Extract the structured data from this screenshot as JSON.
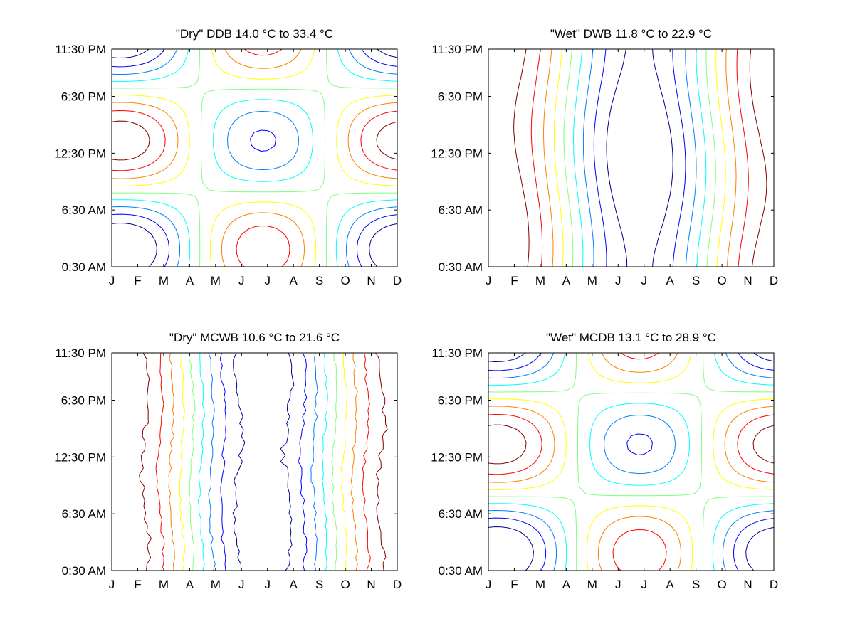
{
  "chart_data": [
    {
      "type": "contour",
      "title": "\"Dry\" DDB  14.0 °C to  33.4 °C",
      "x_ticks": [
        "J",
        "F",
        "M",
        "A",
        "M",
        "J",
        "J",
        "A",
        "S",
        "O",
        "N",
        "D"
      ],
      "y_ticks": [
        "0:30 AM",
        "6:30 AM",
        "12:30 PM",
        "6:30 PM",
        "11:30 PM"
      ],
      "value_range": [
        14.0,
        33.4
      ],
      "pattern": "saddle",
      "colormap": [
        "#00008f",
        "#0000ff",
        "#0080ff",
        "#00ffff",
        "#80ff80",
        "#ffff00",
        "#ff8000",
        "#ff0000",
        "#800000"
      ]
    },
    {
      "type": "contour",
      "title": "\"Wet\" DWB  11.8 °C to  22.9 °C",
      "x_ticks": [
        "J",
        "F",
        "M",
        "A",
        "M",
        "J",
        "J",
        "A",
        "S",
        "O",
        "N",
        "D"
      ],
      "y_ticks": [
        "0:30 AM",
        "6:30 AM",
        "12:30 PM",
        "6:30 PM",
        "11:30 PM"
      ],
      "value_range": [
        11.8,
        22.9
      ],
      "pattern": "vertical",
      "colormap": [
        "#00008f",
        "#0000ff",
        "#0080ff",
        "#00ffff",
        "#80ff80",
        "#ffff00",
        "#ff8000",
        "#ff0000",
        "#800000"
      ]
    },
    {
      "type": "contour",
      "title": "\"Dry\" MCWB  10.6 °C to  21.6 °C",
      "x_ticks": [
        "J",
        "F",
        "M",
        "A",
        "M",
        "J",
        "J",
        "A",
        "S",
        "O",
        "N",
        "D"
      ],
      "y_ticks": [
        "0:30 AM",
        "6:30 AM",
        "12:30 PM",
        "6:30 PM",
        "11:30 PM"
      ],
      "value_range": [
        10.6,
        21.6
      ],
      "pattern": "vertical-noisy",
      "colormap": [
        "#00008f",
        "#0000ff",
        "#0080ff",
        "#00ffff",
        "#80ff80",
        "#ffff00",
        "#ff8000",
        "#ff0000",
        "#800000"
      ]
    },
    {
      "type": "contour",
      "title": "\"Wet\" MCDB  13.1 °C to  28.9 °C",
      "x_ticks": [
        "J",
        "F",
        "M",
        "A",
        "M",
        "J",
        "J",
        "A",
        "S",
        "O",
        "N",
        "D"
      ],
      "y_ticks": [
        "0:30 AM",
        "6:30 AM",
        "12:30 PM",
        "6:30 PM",
        "11:30 PM"
      ],
      "value_range": [
        13.1,
        28.9
      ],
      "pattern": "saddle",
      "colormap": [
        "#00008f",
        "#0000ff",
        "#0080ff",
        "#00ffff",
        "#80ff80",
        "#ffff00",
        "#ff8000",
        "#ff0000",
        "#800000"
      ]
    }
  ]
}
